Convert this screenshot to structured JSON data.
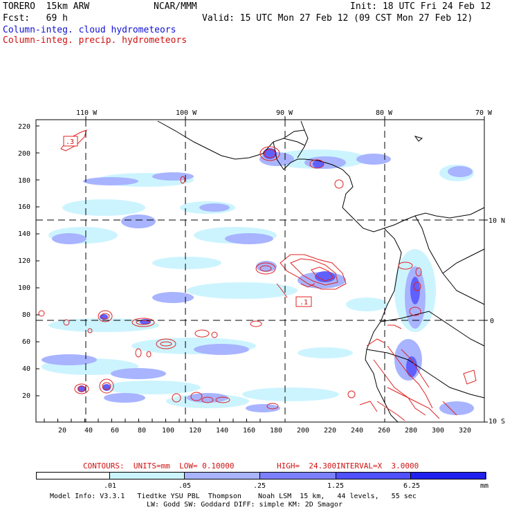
{
  "header": {
    "model": "TORERO  15km ARW",
    "center": "NCAR/MMM",
    "init": "Init: 18 UTC Fri 24 Feb 12",
    "fcst": "Fcst:   69 h",
    "valid": "Valid: 15 UTC Mon 27 Feb 12 (09 CST Mon 27 Feb 12)"
  },
  "legend": {
    "cloud": "Column-integ. cloud hydrometeors",
    "precip": "Column-integ. precip. hydrometeors"
  },
  "axes": {
    "top_labels": [
      "110 W",
      "100 W",
      "90 W",
      "80 W",
      "70 W"
    ],
    "left_labels": [
      "220",
      "200",
      "180",
      "160",
      "140",
      "120",
      "100",
      "80",
      "60",
      "40",
      "20"
    ],
    "bottom_labels": [
      "20",
      "40",
      "60",
      "80",
      "100",
      "120",
      "140",
      "160",
      "180",
      "200",
      "220",
      "240",
      "260",
      "280",
      "300",
      "320"
    ],
    "right_labels": [
      "10 N",
      "0",
      "10 S"
    ]
  },
  "contour_labels": [
    ".3",
    ".1"
  ],
  "contours_info": {
    "contours": "CONTOURS:  UNITS=mm  LOW= 0.10000",
    "high": "HIGH=  24.300",
    "interval": "INTERVAL=X  3.0000"
  },
  "colorbar": {
    "labels": [
      ".01",
      ".05",
      ".25",
      "1.25",
      "6.25"
    ],
    "unit": "mm",
    "colors": [
      "#ffffff",
      "#ccf4ff",
      "#a8b4ff",
      "#7c80ff",
      "#5050ff",
      "#2020ee"
    ]
  },
  "model_info": {
    "line1": "Model Info: V3.3.1   Tiedtke YSU PBL  Thompson    Noah LSM  15 km,   44 levels,   55 sec",
    "line2": "LW: Godd SW: Goddard DIFF: simple KM: 2D Smagor"
  }
}
